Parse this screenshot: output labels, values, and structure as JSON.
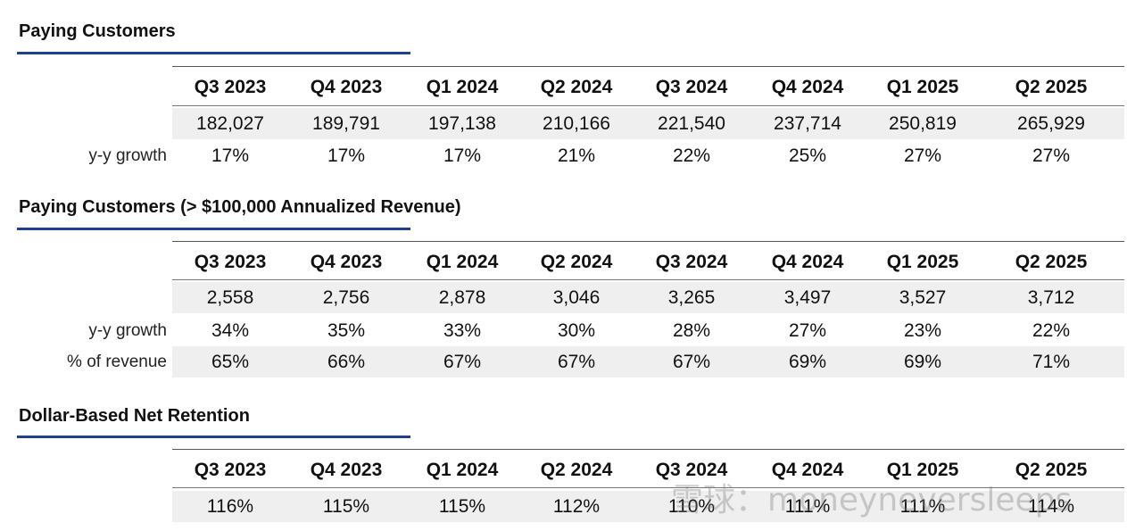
{
  "sections": [
    {
      "title": "Paying Customers",
      "columns": [
        "Q3 2023",
        "Q4 2023",
        "Q1 2024",
        "Q2 2024",
        "Q3 2024",
        "Q4 2024",
        "Q1 2025",
        "Q2 2025"
      ],
      "rows": [
        {
          "label": "",
          "values": [
            "182,027",
            "189,791",
            "197,138",
            "210,166",
            "221,540",
            "237,714",
            "250,819",
            "265,929"
          ]
        },
        {
          "label": "y-y growth",
          "values": [
            "17%",
            "17%",
            "17%",
            "21%",
            "22%",
            "25%",
            "27%",
            "27%"
          ]
        }
      ]
    },
    {
      "title": "Paying Customers (> $100,000 Annualized Revenue)",
      "columns": [
        "Q3 2023",
        "Q4 2023",
        "Q1 2024",
        "Q2 2024",
        "Q3 2024",
        "Q4 2024",
        "Q1 2025",
        "Q2 2025"
      ],
      "rows": [
        {
          "label": "",
          "values": [
            "2,558",
            "2,756",
            "2,878",
            "3,046",
            "3,265",
            "3,497",
            "3,527",
            "3,712"
          ]
        },
        {
          "label": "y-y growth",
          "values": [
            "34%",
            "35%",
            "33%",
            "30%",
            "28%",
            "27%",
            "23%",
            "22%"
          ]
        },
        {
          "label": "% of revenue",
          "values": [
            "65%",
            "66%",
            "67%",
            "67%",
            "67%",
            "69%",
            "69%",
            "71%"
          ]
        }
      ]
    },
    {
      "title": "Dollar-Based Net Retention",
      "columns": [
        "Q3 2023",
        "Q4 2023",
        "Q1 2024",
        "Q2 2024",
        "Q3 2024",
        "Q4 2024",
        "Q1 2025",
        "Q2 2025"
      ],
      "rows": [
        {
          "label": "",
          "values": [
            "116%",
            "115%",
            "115%",
            "112%",
            "110%",
            "111%",
            "111%",
            "114%"
          ]
        }
      ]
    }
  ],
  "watermark": "雪球：moneyneversleeps",
  "colors": {
    "accent_rule": "#1f3f8f",
    "row_shade": "#efefef"
  }
}
